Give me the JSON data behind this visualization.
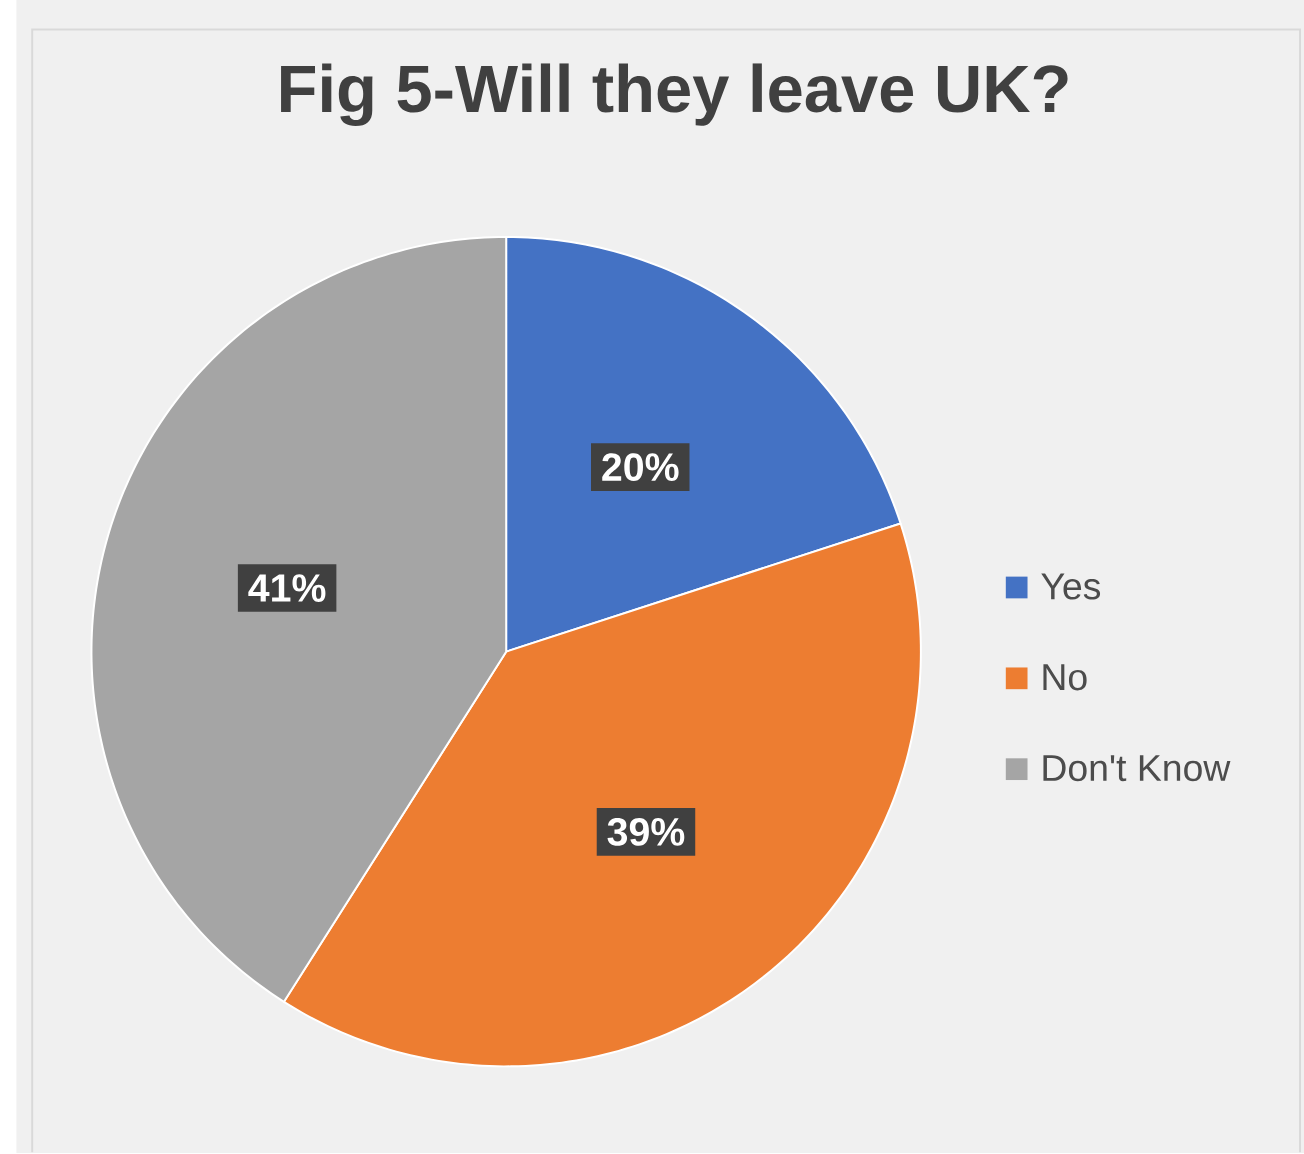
{
  "chart_data": {
    "type": "pie",
    "title": "Fig 5-Will they leave UK?",
    "categories": [
      "Yes",
      "No",
      "Don't Know"
    ],
    "values": [
      20,
      39,
      41
    ],
    "colors": [
      "#4472c4",
      "#ed7d31",
      "#a5a5a5"
    ],
    "value_labels": [
      "20%",
      "39%",
      "41%"
    ],
    "legend": "right"
  }
}
